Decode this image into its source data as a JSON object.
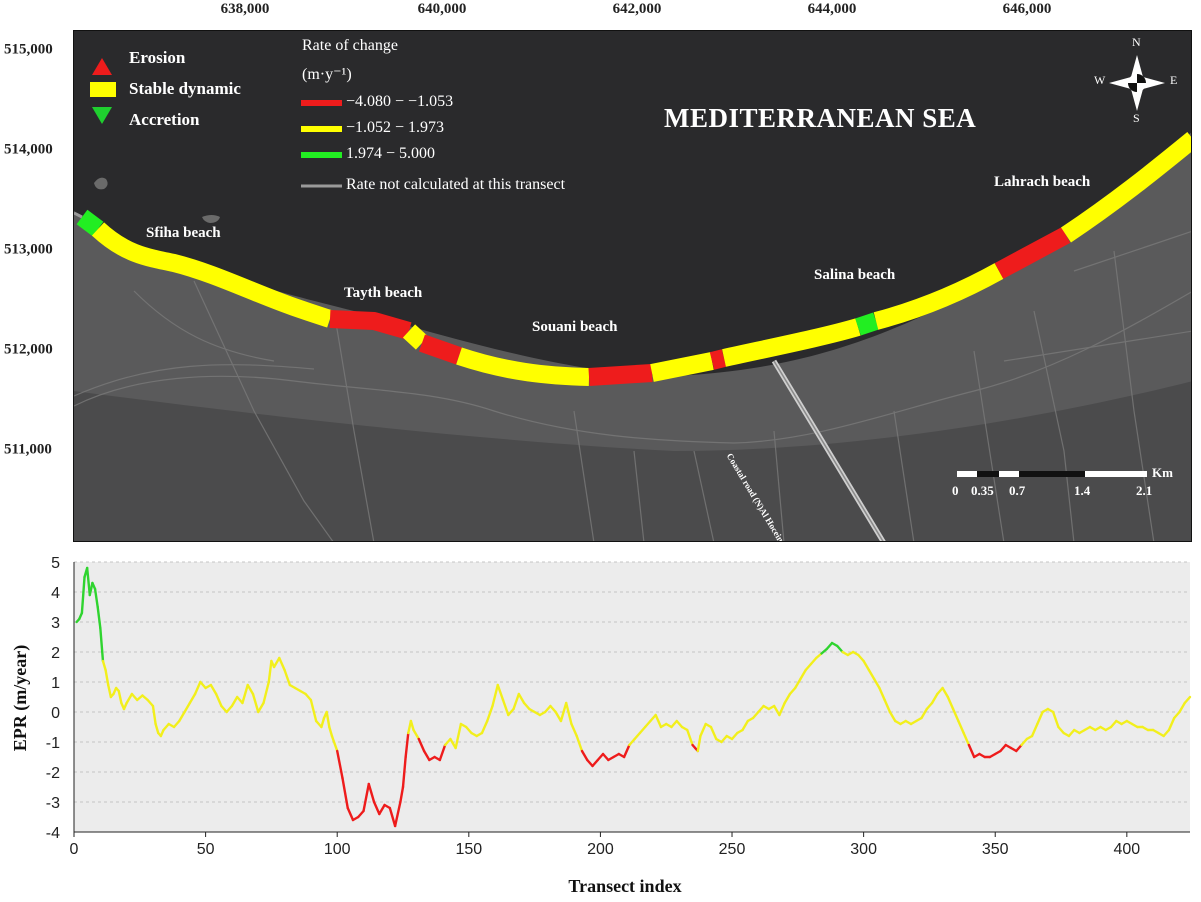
{
  "map": {
    "top_coords": [
      "638,000",
      "640,000",
      "642,000",
      "644,000",
      "646,000"
    ],
    "left_coords": [
      "515,000",
      "514,000",
      "513,000",
      "512,000",
      "511,000"
    ],
    "legend": [
      {
        "label": "Erosion",
        "color": "#ee1c1c",
        "symbol": "triangle-up-icon"
      },
      {
        "label": "Stable dynamic",
        "color": "#ffff00",
        "symbol": "rectangle-icon"
      },
      {
        "label": "Accretion",
        "color": "#1fcf2f",
        "symbol": "triangle-down-icon"
      }
    ],
    "rate_title": "Rate of change",
    "rate_unit": "(m·y⁻¹)",
    "rate_classes": [
      {
        "label": "−4.080 − −1.053",
        "color": "#ee1c1c"
      },
      {
        "label": "−1.052 − 1.973",
        "color": "#ffff00"
      },
      {
        "label": "1.974 − 5.000",
        "color": "#22ee22"
      },
      {
        "label": "Rate not calculated at this transect",
        "color": "#9a9a9a"
      }
    ],
    "sea_label": "MEDITERRANEAN SEA",
    "beaches": [
      "Sfiha beach",
      "Tayth beach",
      "Souani beach",
      "Salina beach",
      "Lahrach beach"
    ],
    "road_label": "Coastal road (N)Al Hoceima -Saïdia Road",
    "compass": {
      "n": "N",
      "s": "S",
      "e": "E",
      "w": "W"
    },
    "scale": {
      "unit": "Km",
      "ticks": [
        "0",
        "0.35",
        "0.7",
        "1.4",
        "2.1"
      ]
    }
  },
  "chart_data": {
    "type": "line",
    "xlabel": "Transect index",
    "ylabel": "EPR (m/year)",
    "xlim": [
      0,
      424
    ],
    "ylim": [
      -4,
      5
    ],
    "xticks": [
      0,
      50,
      100,
      150,
      200,
      250,
      300,
      350,
      400
    ],
    "yticks": [
      5,
      4,
      3,
      2,
      1,
      0,
      -1,
      -2,
      -3,
      -4
    ],
    "grid": true,
    "color_thresholds": {
      "erosion_below": -1.053,
      "accretion_above": 1.973
    },
    "colors": {
      "erosion": "#ee1c1c",
      "stable": "#f2ef1c",
      "accretion": "#2fd42f"
    },
    "points": [
      [
        1,
        3.0
      ],
      [
        2,
        3.1
      ],
      [
        3,
        3.3
      ],
      [
        4,
        4.5
      ],
      [
        5,
        4.8
      ],
      [
        6,
        3.9
      ],
      [
        7,
        4.3
      ],
      [
        8,
        4.1
      ],
      [
        9,
        3.5
      ],
      [
        10,
        2.8
      ],
      [
        11,
        1.7
      ],
      [
        12,
        1.4
      ],
      [
        13,
        0.9
      ],
      [
        14,
        0.5
      ],
      [
        15,
        0.6
      ],
      [
        16,
        0.8
      ],
      [
        17,
        0.7
      ],
      [
        18,
        0.3
      ],
      [
        19,
        0.1
      ],
      [
        20,
        0.3
      ],
      [
        22,
        0.6
      ],
      [
        24,
        0.4
      ],
      [
        26,
        0.55
      ],
      [
        28,
        0.4
      ],
      [
        30,
        0.2
      ],
      [
        31,
        -0.4
      ],
      [
        32,
        -0.7
      ],
      [
        33,
        -0.8
      ],
      [
        34,
        -0.6
      ],
      [
        36,
        -0.4
      ],
      [
        38,
        -0.5
      ],
      [
        40,
        -0.3
      ],
      [
        42,
        0.0
      ],
      [
        44,
        0.3
      ],
      [
        46,
        0.6
      ],
      [
        48,
        1.0
      ],
      [
        50,
        0.8
      ],
      [
        52,
        0.9
      ],
      [
        54,
        0.6
      ],
      [
        56,
        0.2
      ],
      [
        58,
        0.0
      ],
      [
        60,
        0.2
      ],
      [
        62,
        0.5
      ],
      [
        64,
        0.3
      ],
      [
        66,
        0.9
      ],
      [
        68,
        0.6
      ],
      [
        70,
        0.0
      ],
      [
        72,
        0.3
      ],
      [
        74,
        1.0
      ],
      [
        75,
        1.7
      ],
      [
        76,
        1.5
      ],
      [
        78,
        1.8
      ],
      [
        80,
        1.4
      ],
      [
        82,
        0.9
      ],
      [
        84,
        0.8
      ],
      [
        86,
        0.7
      ],
      [
        88,
        0.6
      ],
      [
        90,
        0.4
      ],
      [
        92,
        -0.3
      ],
      [
        94,
        -0.5
      ],
      [
        95,
        -0.2
      ],
      [
        96,
        0.0
      ],
      [
        97,
        -0.5
      ],
      [
        98,
        -0.8
      ],
      [
        100,
        -1.3
      ],
      [
        102,
        -2.2
      ],
      [
        104,
        -3.2
      ],
      [
        106,
        -3.6
      ],
      [
        108,
        -3.5
      ],
      [
        110,
        -3.3
      ],
      [
        112,
        -2.4
      ],
      [
        114,
        -3.0
      ],
      [
        116,
        -3.4
      ],
      [
        118,
        -3.1
      ],
      [
        120,
        -3.2
      ],
      [
        122,
        -3.8
      ],
      [
        124,
        -3.0
      ],
      [
        125,
        -2.5
      ],
      [
        126,
        -1.5
      ],
      [
        127,
        -0.7
      ],
      [
        128,
        -0.3
      ],
      [
        129,
        -0.6
      ],
      [
        131,
        -0.9
      ],
      [
        133,
        -1.3
      ],
      [
        135,
        -1.6
      ],
      [
        137,
        -1.5
      ],
      [
        139,
        -1.6
      ],
      [
        141,
        -1.1
      ],
      [
        143,
        -0.9
      ],
      [
        145,
        -1.2
      ],
      [
        147,
        -0.4
      ],
      [
        149,
        -0.5
      ],
      [
        151,
        -0.7
      ],
      [
        153,
        -0.8
      ],
      [
        155,
        -0.7
      ],
      [
        157,
        -0.3
      ],
      [
        159,
        0.2
      ],
      [
        161,
        0.9
      ],
      [
        163,
        0.4
      ],
      [
        165,
        -0.1
      ],
      [
        167,
        0.1
      ],
      [
        169,
        0.6
      ],
      [
        171,
        0.3
      ],
      [
        173,
        0.1
      ],
      [
        175,
        0.0
      ],
      [
        177,
        -0.1
      ],
      [
        179,
        0.0
      ],
      [
        181,
        0.2
      ],
      [
        183,
        0.0
      ],
      [
        185,
        -0.3
      ],
      [
        187,
        0.3
      ],
      [
        189,
        -0.4
      ],
      [
        191,
        -0.8
      ],
      [
        193,
        -1.3
      ],
      [
        195,
        -1.6
      ],
      [
        197,
        -1.8
      ],
      [
        199,
        -1.6
      ],
      [
        201,
        -1.4
      ],
      [
        203,
        -1.6
      ],
      [
        205,
        -1.5
      ],
      [
        207,
        -1.4
      ],
      [
        209,
        -1.5
      ],
      [
        211,
        -1.1
      ],
      [
        213,
        -0.9
      ],
      [
        215,
        -0.7
      ],
      [
        217,
        -0.5
      ],
      [
        219,
        -0.3
      ],
      [
        221,
        -0.1
      ],
      [
        223,
        -0.5
      ],
      [
        225,
        -0.4
      ],
      [
        227,
        -0.5
      ],
      [
        229,
        -0.3
      ],
      [
        231,
        -0.5
      ],
      [
        233,
        -0.6
      ],
      [
        235,
        -1.1
      ],
      [
        236,
        -1.2
      ],
      [
        237,
        -1.3
      ],
      [
        238,
        -0.8
      ],
      [
        240,
        -0.4
      ],
      [
        242,
        -0.5
      ],
      [
        244,
        -0.9
      ],
      [
        246,
        -1.0
      ],
      [
        248,
        -0.8
      ],
      [
        250,
        -0.9
      ],
      [
        252,
        -0.7
      ],
      [
        254,
        -0.6
      ],
      [
        256,
        -0.3
      ],
      [
        258,
        -0.2
      ],
      [
        260,
        0.0
      ],
      [
        262,
        0.2
      ],
      [
        264,
        0.1
      ],
      [
        266,
        0.2
      ],
      [
        268,
        -0.1
      ],
      [
        270,
        0.3
      ],
      [
        272,
        0.6
      ],
      [
        274,
        0.8
      ],
      [
        276,
        1.1
      ],
      [
        278,
        1.4
      ],
      [
        280,
        1.6
      ],
      [
        282,
        1.8
      ],
      [
        284,
        1.95
      ],
      [
        286,
        2.1
      ],
      [
        288,
        2.3
      ],
      [
        290,
        2.2
      ],
      [
        292,
        2.0
      ],
      [
        294,
        1.9
      ],
      [
        296,
        2.0
      ],
      [
        298,
        1.9
      ],
      [
        300,
        1.7
      ],
      [
        302,
        1.4
      ],
      [
        304,
        1.1
      ],
      [
        306,
        0.8
      ],
      [
        308,
        0.4
      ],
      [
        310,
        0.0
      ],
      [
        312,
        -0.3
      ],
      [
        314,
        -0.4
      ],
      [
        316,
        -0.3
      ],
      [
        318,
        -0.4
      ],
      [
        320,
        -0.3
      ],
      [
        322,
        -0.2
      ],
      [
        324,
        0.1
      ],
      [
        326,
        0.3
      ],
      [
        328,
        0.6
      ],
      [
        330,
        0.8
      ],
      [
        332,
        0.5
      ],
      [
        334,
        0.1
      ],
      [
        336,
        -0.3
      ],
      [
        338,
        -0.7
      ],
      [
        340,
        -1.1
      ],
      [
        342,
        -1.5
      ],
      [
        344,
        -1.4
      ],
      [
        346,
        -1.5
      ],
      [
        348,
        -1.5
      ],
      [
        350,
        -1.4
      ],
      [
        352,
        -1.3
      ],
      [
        354,
        -1.1
      ],
      [
        356,
        -1.2
      ],
      [
        358,
        -1.3
      ],
      [
        360,
        -1.1
      ],
      [
        362,
        -0.9
      ],
      [
        364,
        -0.8
      ],
      [
        366,
        -0.4
      ],
      [
        368,
        0.0
      ],
      [
        370,
        0.1
      ],
      [
        372,
        0.0
      ],
      [
        374,
        -0.5
      ],
      [
        376,
        -0.7
      ],
      [
        378,
        -0.8
      ],
      [
        380,
        -0.6
      ],
      [
        382,
        -0.7
      ],
      [
        384,
        -0.6
      ],
      [
        386,
        -0.5
      ],
      [
        388,
        -0.6
      ],
      [
        390,
        -0.5
      ],
      [
        392,
        -0.6
      ],
      [
        394,
        -0.5
      ],
      [
        396,
        -0.3
      ],
      [
        398,
        -0.4
      ],
      [
        400,
        -0.3
      ],
      [
        402,
        -0.4
      ],
      [
        404,
        -0.5
      ],
      [
        406,
        -0.5
      ],
      [
        408,
        -0.6
      ],
      [
        410,
        -0.6
      ],
      [
        412,
        -0.7
      ],
      [
        414,
        -0.8
      ],
      [
        416,
        -0.6
      ],
      [
        418,
        -0.2
      ],
      [
        420,
        0.0
      ],
      [
        422,
        0.3
      ],
      [
        424,
        0.5
      ]
    ]
  }
}
